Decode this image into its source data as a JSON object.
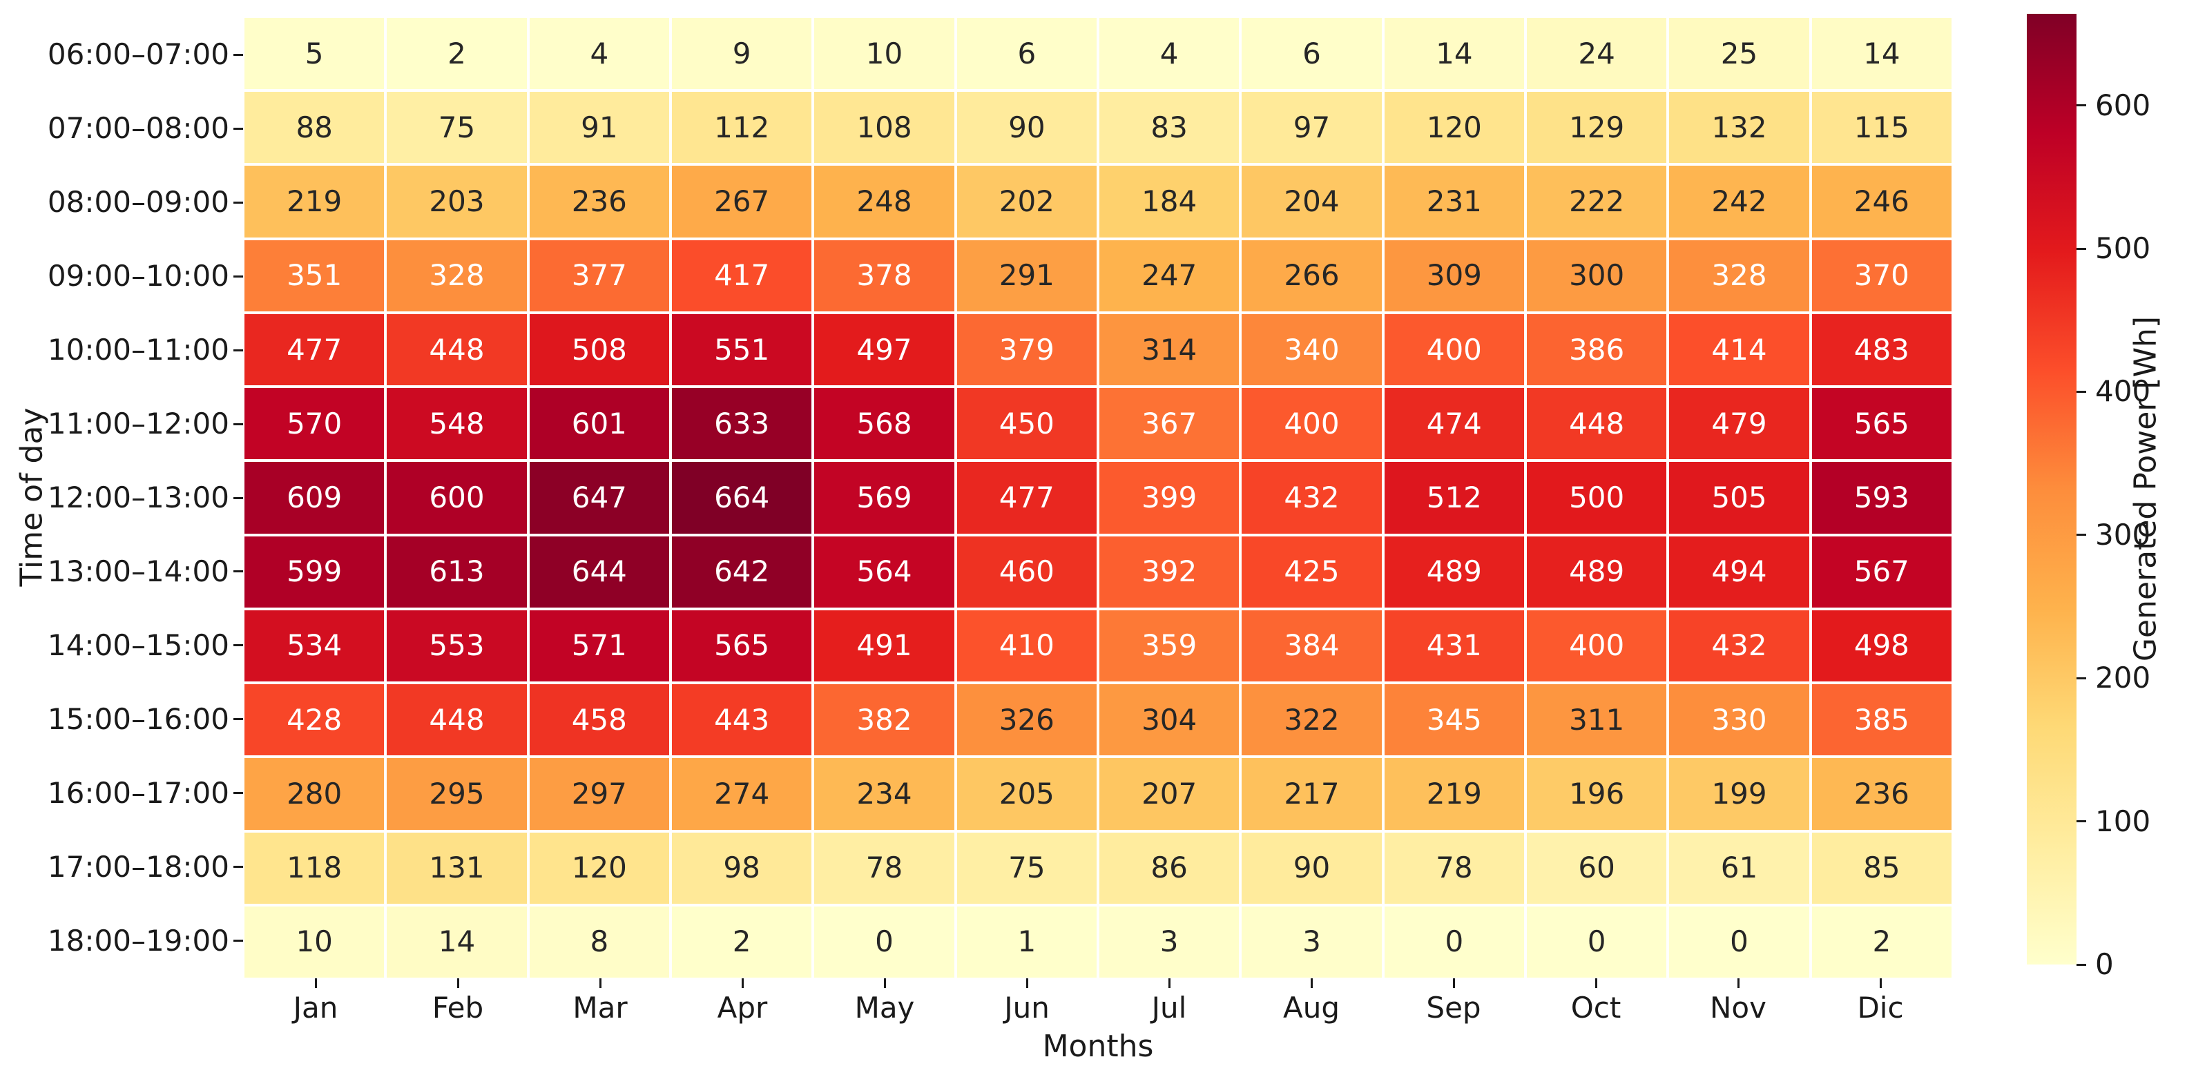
{
  "chart_data": {
    "type": "heatmap",
    "title": "",
    "xlabel": "Months",
    "ylabel": "Time of day",
    "columns": [
      "Jan",
      "Feb",
      "Mar",
      "Apr",
      "May",
      "Jun",
      "Jul",
      "Aug",
      "Sep",
      "Oct",
      "Nov",
      "Dic"
    ],
    "rows": [
      "06:00–07:00",
      "07:00–08:00",
      "08:00–09:00",
      "09:00–10:00",
      "10:00–11:00",
      "11:00–12:00",
      "12:00–13:00",
      "13:00–14:00",
      "14:00–15:00",
      "15:00–16:00",
      "16:00–17:00",
      "17:00–18:00",
      "18:00–19:00"
    ],
    "values": [
      [
        5,
        2,
        4,
        9,
        10,
        6,
        4,
        6,
        14,
        24,
        25,
        14
      ],
      [
        88,
        75,
        91,
        112,
        108,
        90,
        83,
        97,
        120,
        129,
        132,
        115
      ],
      [
        219,
        203,
        236,
        267,
        248,
        202,
        184,
        204,
        231,
        222,
        242,
        246
      ],
      [
        351,
        328,
        377,
        417,
        378,
        291,
        247,
        266,
        309,
        300,
        328,
        370
      ],
      [
        477,
        448,
        508,
        551,
        497,
        379,
        314,
        340,
        400,
        386,
        414,
        483
      ],
      [
        570,
        548,
        601,
        633,
        568,
        450,
        367,
        400,
        474,
        448,
        479,
        565
      ],
      [
        609,
        600,
        647,
        664,
        569,
        477,
        399,
        432,
        512,
        500,
        505,
        593
      ],
      [
        599,
        613,
        644,
        642,
        564,
        460,
        392,
        425,
        489,
        489,
        494,
        567
      ],
      [
        534,
        553,
        571,
        565,
        491,
        410,
        359,
        384,
        431,
        400,
        432,
        498
      ],
      [
        428,
        448,
        458,
        443,
        382,
        326,
        304,
        322,
        345,
        311,
        330,
        385
      ],
      [
        280,
        295,
        297,
        274,
        234,
        205,
        207,
        217,
        219,
        196,
        199,
        236
      ],
      [
        118,
        131,
        120,
        98,
        78,
        75,
        86,
        90,
        78,
        60,
        61,
        85
      ],
      [
        10,
        14,
        8,
        2,
        0,
        1,
        3,
        3,
        0,
        0,
        0,
        2
      ]
    ],
    "vmin": 0,
    "vmax": 664,
    "colormap": "YlOrRd",
    "colormap_stops": [
      "#ffffcc",
      "#ffeda0",
      "#fed976",
      "#feb24c",
      "#fd8d3c",
      "#fc4e2a",
      "#e31a1c",
      "#bd0026",
      "#800026"
    ],
    "grid_line_color": "#ffffff",
    "annotation_dark_text_color": "#262626",
    "annotation_light_text_color": "#ffffff",
    "annotation_white_text_min": 327,
    "legend_position": "right",
    "grid": false,
    "colorbar": {
      "label": "Generated Power [Wh]",
      "ticks": [
        0,
        100,
        200,
        300,
        400,
        500,
        600
      ]
    }
  }
}
